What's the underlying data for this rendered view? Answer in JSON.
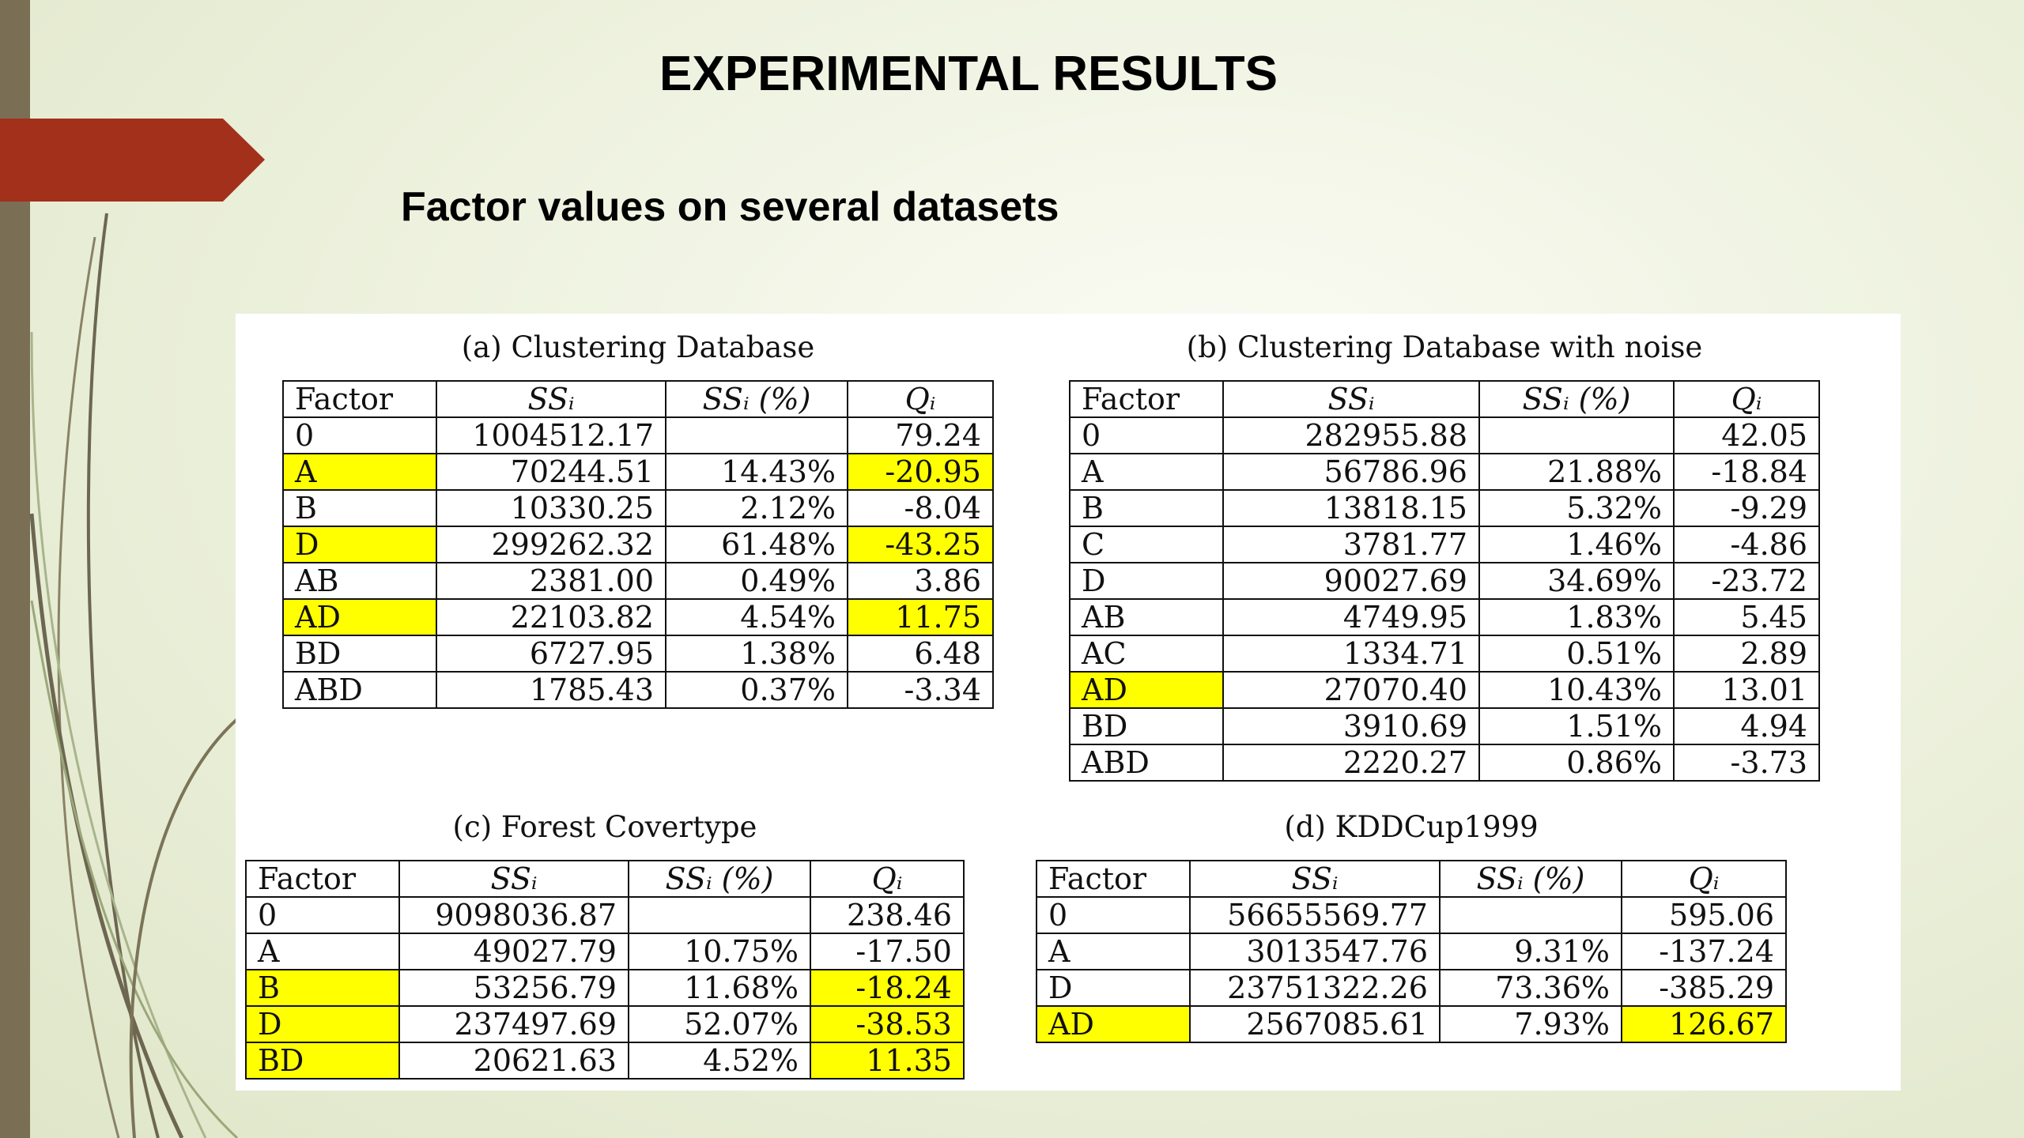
{
  "slide": {
    "title": "EXPERIMENTAL RESULTS",
    "subtitle": "Factor values on several datasets"
  },
  "tables": [
    {
      "caption": "(a) Clustering Database",
      "headers": [
        "Factor",
        "SSᵢ",
        "SSᵢ (%)",
        "Qᵢ"
      ],
      "rows": [
        {
          "cells": [
            "0",
            "1004512.17",
            "",
            "79.24"
          ],
          "highlight": [
            false,
            false,
            false,
            false
          ]
        },
        {
          "cells": [
            "A",
            "70244.51",
            "14.43%",
            "-20.95"
          ],
          "highlight": [
            true,
            false,
            false,
            true
          ]
        },
        {
          "cells": [
            "B",
            "10330.25",
            "2.12%",
            "-8.04"
          ],
          "highlight": [
            false,
            false,
            false,
            false
          ]
        },
        {
          "cells": [
            "D",
            "299262.32",
            "61.48%",
            "-43.25"
          ],
          "highlight": [
            true,
            false,
            false,
            true
          ]
        },
        {
          "cells": [
            "AB",
            "2381.00",
            "0.49%",
            "3.86"
          ],
          "highlight": [
            false,
            false,
            false,
            false
          ]
        },
        {
          "cells": [
            "AD",
            "22103.82",
            "4.54%",
            "11.75"
          ],
          "highlight": [
            true,
            false,
            false,
            true
          ]
        },
        {
          "cells": [
            "BD",
            "6727.95",
            "1.38%",
            "6.48"
          ],
          "highlight": [
            false,
            false,
            false,
            false
          ]
        },
        {
          "cells": [
            "ABD",
            "1785.43",
            "0.37%",
            "-3.34"
          ],
          "highlight": [
            false,
            false,
            false,
            false
          ]
        }
      ]
    },
    {
      "caption": "(b) Clustering Database with noise",
      "headers": [
        "Factor",
        "SSᵢ",
        "SSᵢ (%)",
        "Qᵢ"
      ],
      "rows": [
        {
          "cells": [
            "0",
            "282955.88",
            "",
            "42.05"
          ],
          "highlight": [
            false,
            false,
            false,
            false
          ]
        },
        {
          "cells": [
            "A",
            "56786.96",
            "21.88%",
            "-18.84"
          ],
          "highlight": [
            false,
            false,
            false,
            false
          ]
        },
        {
          "cells": [
            "B",
            "13818.15",
            "5.32%",
            "-9.29"
          ],
          "highlight": [
            false,
            false,
            false,
            false
          ]
        },
        {
          "cells": [
            "C",
            "3781.77",
            "1.46%",
            "-4.86"
          ],
          "highlight": [
            false,
            false,
            false,
            false
          ]
        },
        {
          "cells": [
            "D",
            "90027.69",
            "34.69%",
            "-23.72"
          ],
          "highlight": [
            false,
            false,
            false,
            false
          ]
        },
        {
          "cells": [
            "AB",
            "4749.95",
            "1.83%",
            "5.45"
          ],
          "highlight": [
            false,
            false,
            false,
            false
          ]
        },
        {
          "cells": [
            "AC",
            "1334.71",
            "0.51%",
            "2.89"
          ],
          "highlight": [
            false,
            false,
            false,
            false
          ]
        },
        {
          "cells": [
            "AD",
            "27070.40",
            "10.43%",
            "13.01"
          ],
          "highlight": [
            true,
            false,
            false,
            false
          ]
        },
        {
          "cells": [
            "BD",
            "3910.69",
            "1.51%",
            "4.94"
          ],
          "highlight": [
            false,
            false,
            false,
            false
          ]
        },
        {
          "cells": [
            "ABD",
            "2220.27",
            "0.86%",
            "-3.73"
          ],
          "highlight": [
            false,
            false,
            false,
            false
          ]
        }
      ]
    },
    {
      "caption": "(c) Forest Covertype",
      "headers": [
        "Factor",
        "SSᵢ",
        "SSᵢ (%)",
        "Qᵢ"
      ],
      "rows": [
        {
          "cells": [
            "0",
            "9098036.87",
            "",
            "238.46"
          ],
          "highlight": [
            false,
            false,
            false,
            false
          ]
        },
        {
          "cells": [
            "A",
            "49027.79",
            "10.75%",
            "-17.50"
          ],
          "highlight": [
            false,
            false,
            false,
            false
          ]
        },
        {
          "cells": [
            "B",
            "53256.79",
            "11.68%",
            "-18.24"
          ],
          "highlight": [
            true,
            false,
            false,
            true
          ]
        },
        {
          "cells": [
            "D",
            "237497.69",
            "52.07%",
            "-38.53"
          ],
          "highlight": [
            true,
            false,
            false,
            true
          ]
        },
        {
          "cells": [
            "BD",
            "20621.63",
            "4.52%",
            "11.35"
          ],
          "highlight": [
            true,
            false,
            false,
            true
          ]
        }
      ]
    },
    {
      "caption": "(d) KDDCup1999",
      "headers": [
        "Factor",
        "SSᵢ",
        "SSᵢ (%)",
        "Qᵢ"
      ],
      "rows": [
        {
          "cells": [
            "0",
            "56655569.77",
            "",
            "595.06"
          ],
          "highlight": [
            false,
            false,
            false,
            false
          ]
        },
        {
          "cells": [
            "A",
            "3013547.76",
            "9.31%",
            "-137.24"
          ],
          "highlight": [
            false,
            false,
            false,
            false
          ]
        },
        {
          "cells": [
            "D",
            "23751322.26",
            "73.36%",
            "-385.29"
          ],
          "highlight": [
            false,
            false,
            false,
            false
          ]
        },
        {
          "cells": [
            "AD",
            "2567085.61",
            "7.93%",
            "126.67"
          ],
          "highlight": [
            true,
            false,
            false,
            true
          ]
        }
      ]
    }
  ],
  "colors": {
    "highlight": "#ffff00",
    "arrow": "#a3301a",
    "left_bar": "#7a6f55"
  }
}
